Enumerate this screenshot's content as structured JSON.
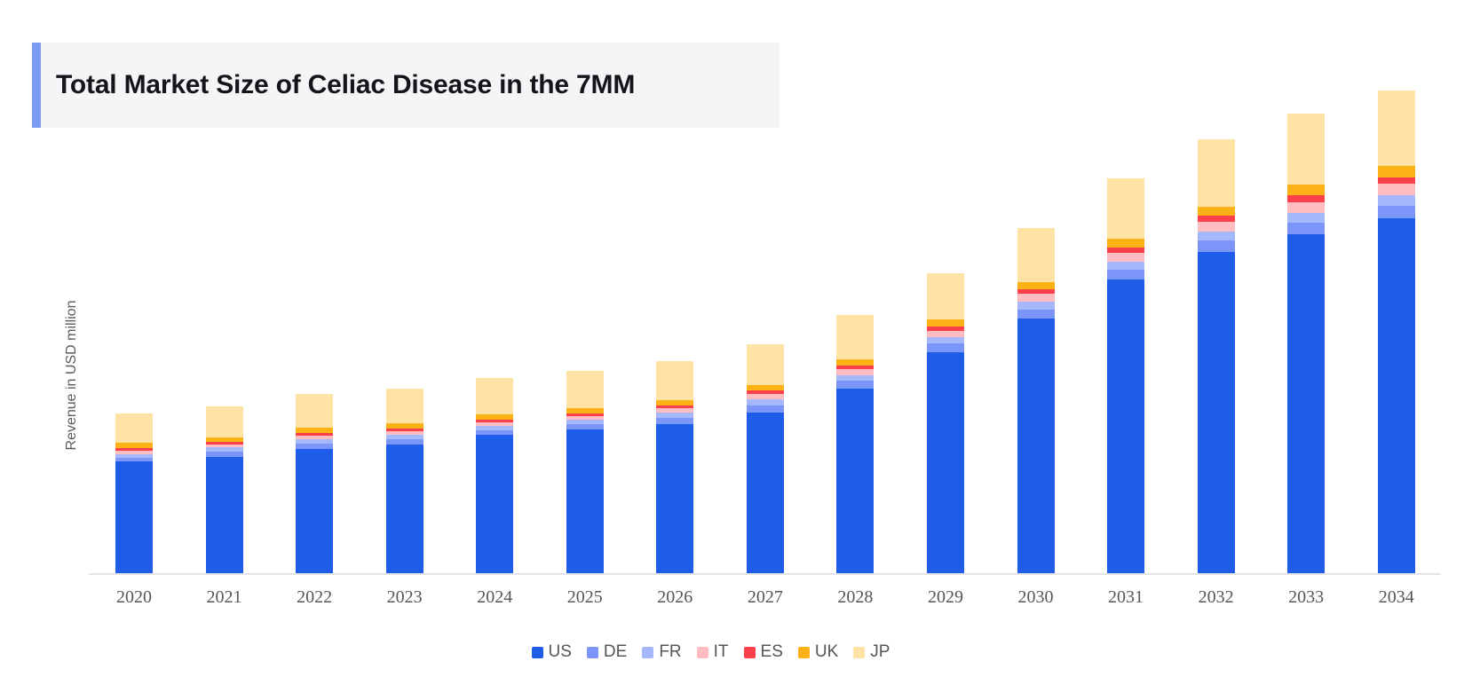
{
  "title": {
    "text": "Total Market Size of Celiac Disease in the 7MM"
  },
  "colors": {
    "title_accent": "#7e9bf2",
    "title_background": "#f5f5f7",
    "axis_line": "#e5e5e7",
    "label_text": "#55565a"
  },
  "y_axis": {
    "label": "Revenue in USD million",
    "tick_labels_visible": false
  },
  "x_axis": {
    "categories": [
      "2020",
      "2021",
      "2022",
      "2023",
      "2024",
      "2025",
      "2026",
      "2027",
      "2028",
      "2029",
      "2030",
      "2031",
      "2032",
      "2033",
      "2034"
    ]
  },
  "legend": {
    "position": "bottom",
    "items": [
      "US",
      "DE",
      "FR",
      "IT",
      "ES",
      "UK",
      "JP"
    ]
  },
  "chart_data": {
    "type": "bar",
    "stacked": true,
    "title": "Total Market Size of Celiac Disease in the 7MM",
    "xlabel": "",
    "ylabel": "Revenue in USD million",
    "categories": [
      "2020",
      "2021",
      "2022",
      "2023",
      "2024",
      "2025",
      "2026",
      "2027",
      "2028",
      "2029",
      "2030",
      "2031",
      "2032",
      "2033",
      "2034"
    ],
    "series": [
      {
        "name": "US",
        "color": "#1f5ce9",
        "values": [
          128,
          133,
          142,
          147,
          158,
          164,
          170,
          183,
          210,
          251,
          289,
          333,
          364,
          384,
          402
        ]
      },
      {
        "name": "DE",
        "color": "#7b95f8",
        "values": [
          4,
          6,
          6,
          6,
          5,
          6,
          7,
          8,
          9,
          10,
          10,
          11,
          13,
          13,
          14
        ]
      },
      {
        "name": "FR",
        "color": "#a5b8fb",
        "values": [
          4,
          5,
          5,
          5,
          5,
          5,
          6,
          7,
          6,
          7,
          9,
          9,
          10,
          11,
          12
        ]
      },
      {
        "name": "IT",
        "color": "#ffbcc1",
        "values": [
          4,
          3,
          4,
          4,
          4,
          4,
          5,
          6,
          7,
          7,
          9,
          10,
          11,
          12,
          13
        ]
      },
      {
        "name": "ES",
        "color": "#fc414b",
        "values": [
          3,
          3,
          3,
          3,
          3,
          3,
          3,
          4,
          4,
          5,
          5,
          6,
          7,
          8,
          7
        ]
      },
      {
        "name": "UK",
        "color": "#fcb117",
        "values": [
          6,
          5,
          6,
          6,
          6,
          6,
          6,
          6,
          7,
          8,
          8,
          10,
          10,
          12,
          13
        ]
      },
      {
        "name": "JP",
        "color": "#ffe3a4",
        "values": [
          33,
          35,
          38,
          39,
          41,
          42,
          44,
          46,
          50,
          52,
          61,
          68,
          76,
          80,
          85
        ]
      }
    ],
    "totals": [
      182,
      190,
      204,
      210,
      222,
      230,
      241,
      260,
      293,
      340,
      392,
      447,
      491,
      520,
      546
    ],
    "values_unit": "relative units (no numeric y-axis scale shown in chart)",
    "grid": false,
    "legend_position": "bottom",
    "legend_entries": [
      "US",
      "DE",
      "FR",
      "IT",
      "ES",
      "UK",
      "JP"
    ]
  }
}
